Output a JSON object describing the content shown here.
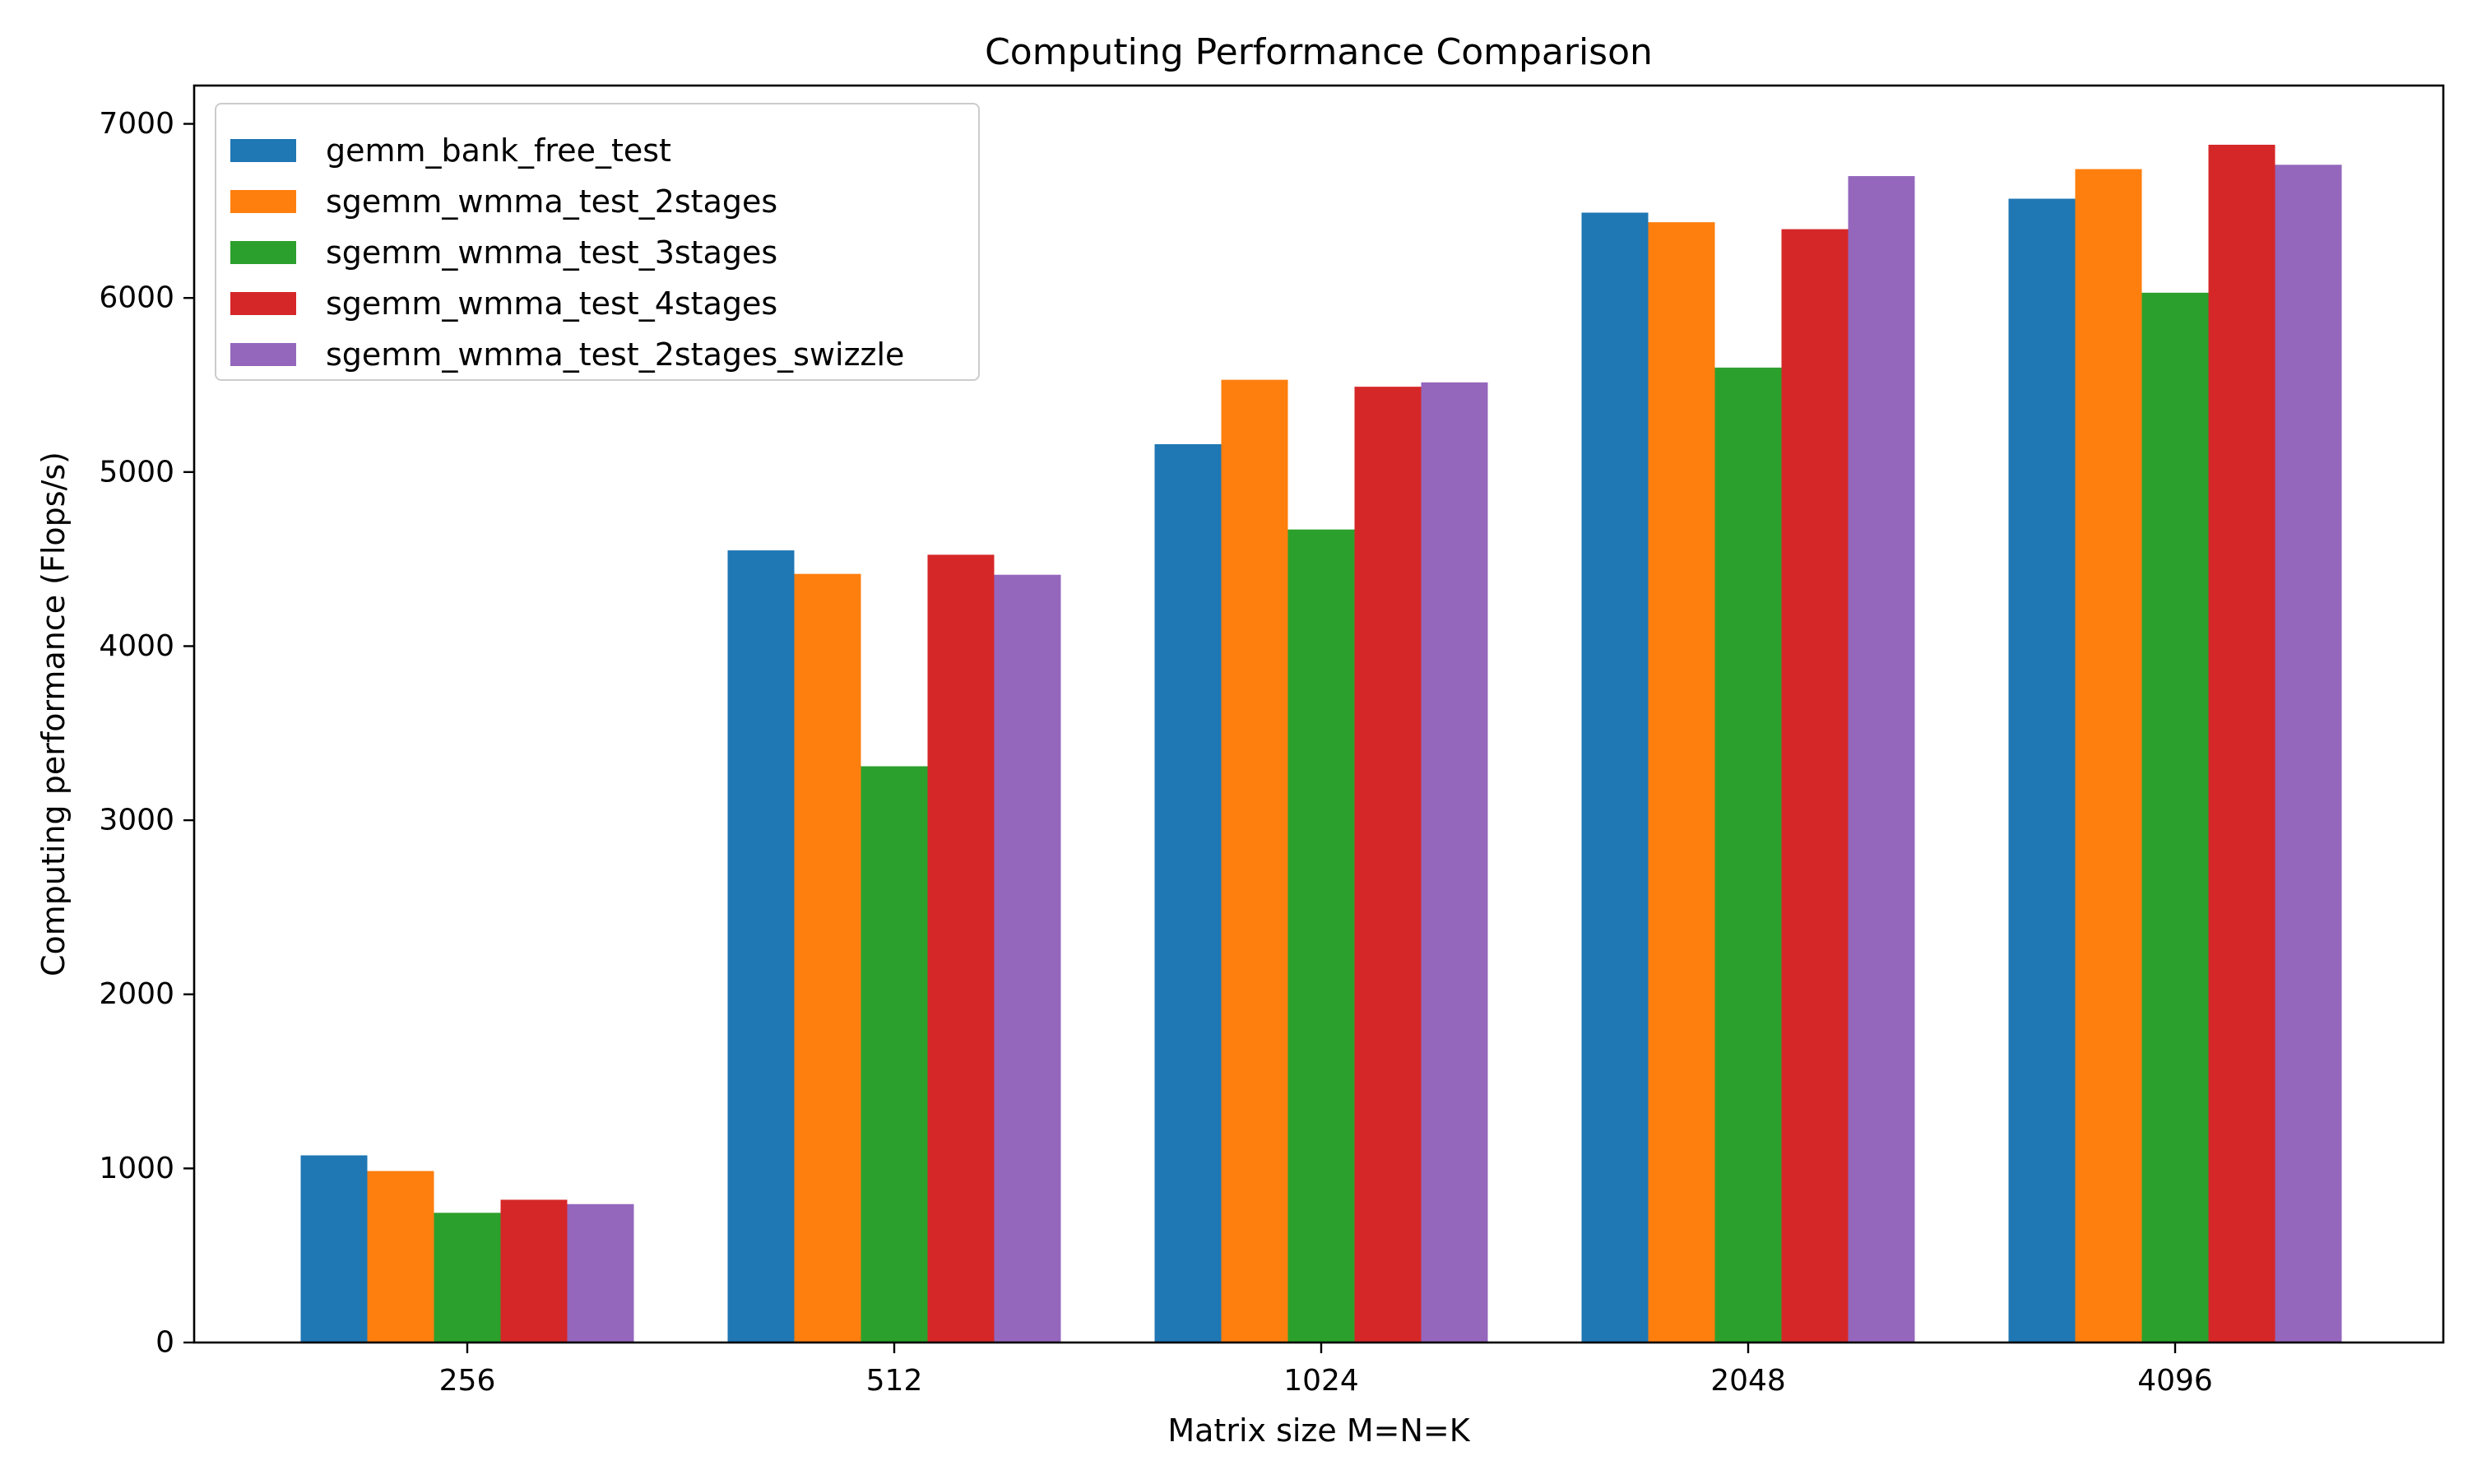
{
  "chart_data": {
    "type": "bar",
    "title": "Computing Performance Comparison",
    "xlabel": "Matrix size M=N=K",
    "ylabel": "Computing performance (Flops/s)",
    "categories": [
      "256",
      "512",
      "1024",
      "2048",
      "4096"
    ],
    "ylim": [
      0,
      7220
    ],
    "yticks": [
      0,
      1000,
      2000,
      3000,
      4000,
      5000,
      6000,
      7000
    ],
    "ytick_labels": [
      "0",
      "1000",
      "2000",
      "3000",
      "4000",
      "5000",
      "6000",
      "7000"
    ],
    "grid": false,
    "legend_position": "top-left",
    "series": [
      {
        "name": "gemm_bank_free_test",
        "color": "#1f77b4",
        "values": [
          1075,
          4550,
          5160,
          6490,
          6570
        ]
      },
      {
        "name": "sgemm_wmma_test_2stages",
        "color": "#ff7f0e",
        "values": [
          985,
          4415,
          5530,
          6435,
          6740
        ]
      },
      {
        "name": "sgemm_wmma_test_3stages",
        "color": "#2ca02c",
        "values": [
          745,
          3310,
          4670,
          5600,
          6030
        ]
      },
      {
        "name": "sgemm_wmma_test_4stages",
        "color": "#d62728",
        "values": [
          820,
          4525,
          5490,
          6395,
          6880
        ]
      },
      {
        "name": "sgemm_wmma_test_2stages_swizzle",
        "color": "#9467bd",
        "values": [
          795,
          4410,
          5515,
          6700,
          6765
        ]
      }
    ]
  }
}
